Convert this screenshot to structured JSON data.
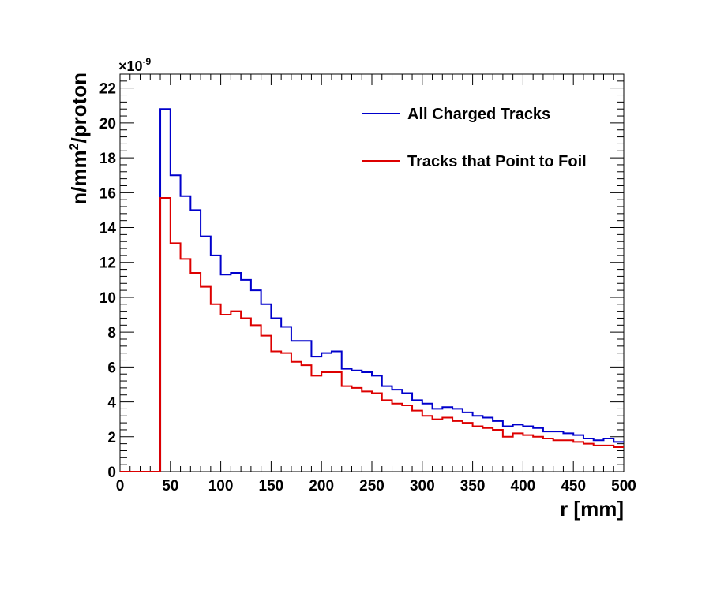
{
  "chart_data": {
    "type": "histogram",
    "xlabel": "r [mm]",
    "ylabel_main": "n/mm",
    "ylabel_sup": "2",
    "ylabel_tail": "/proton",
    "y_multiplier": "×10",
    "y_multiplier_exp": "-9",
    "xlim": [
      0,
      500
    ],
    "ylim": [
      0,
      22.8
    ],
    "grid": false,
    "legend_position": "top-right",
    "x_ticks": [
      0,
      50,
      100,
      150,
      200,
      250,
      300,
      350,
      400,
      450,
      500
    ],
    "x_tick_labels": [
      "0",
      "50",
      "100",
      "150",
      "200",
      "250",
      "300",
      "350",
      "400",
      "450",
      "500"
    ],
    "y_ticks": [
      0,
      2,
      4,
      6,
      8,
      10,
      12,
      14,
      16,
      18,
      20,
      22
    ],
    "y_tick_labels": [
      "0",
      "2",
      "4",
      "6",
      "8",
      "10",
      "12",
      "14",
      "16",
      "18",
      "20",
      "22"
    ],
    "bin_edges": [
      0,
      10,
      20,
      30,
      40,
      50,
      60,
      70,
      80,
      90,
      100,
      110,
      120,
      130,
      140,
      150,
      160,
      170,
      180,
      190,
      200,
      210,
      220,
      230,
      240,
      250,
      260,
      270,
      280,
      290,
      300,
      310,
      320,
      330,
      340,
      350,
      360,
      370,
      380,
      390,
      400,
      410,
      420,
      430,
      440,
      450,
      460,
      470,
      480,
      490,
      500
    ],
    "series": [
      {
        "name": "All Charged Tracks",
        "color": "#0000cc",
        "values": [
          0,
          0,
          0,
          0,
          20.8,
          17.0,
          15.8,
          15.0,
          13.5,
          12.4,
          11.3,
          11.4,
          11.0,
          10.4,
          9.6,
          8.8,
          8.3,
          7.5,
          7.5,
          6.6,
          6.8,
          6.9,
          5.9,
          5.8,
          5.7,
          5.5,
          4.9,
          4.7,
          4.5,
          4.1,
          3.9,
          3.6,
          3.7,
          3.6,
          3.4,
          3.2,
          3.1,
          2.9,
          2.6,
          2.7,
          2.6,
          2.5,
          2.3,
          2.3,
          2.2,
          2.1,
          1.9,
          1.8,
          1.9,
          1.7
        ]
      },
      {
        "name": "Tracks that Point to Foil",
        "color": "#dd0000",
        "values": [
          0,
          0,
          0,
          0,
          15.7,
          13.1,
          12.2,
          11.4,
          10.6,
          9.6,
          9.0,
          9.2,
          8.8,
          8.4,
          7.8,
          6.9,
          6.8,
          6.3,
          6.1,
          5.5,
          5.7,
          5.7,
          4.9,
          4.8,
          4.6,
          4.5,
          4.1,
          3.9,
          3.8,
          3.5,
          3.2,
          3.0,
          3.1,
          2.9,
          2.8,
          2.6,
          2.5,
          2.4,
          2.0,
          2.2,
          2.1,
          2.0,
          1.9,
          1.8,
          1.8,
          1.7,
          1.6,
          1.5,
          1.5,
          1.4
        ]
      }
    ]
  }
}
